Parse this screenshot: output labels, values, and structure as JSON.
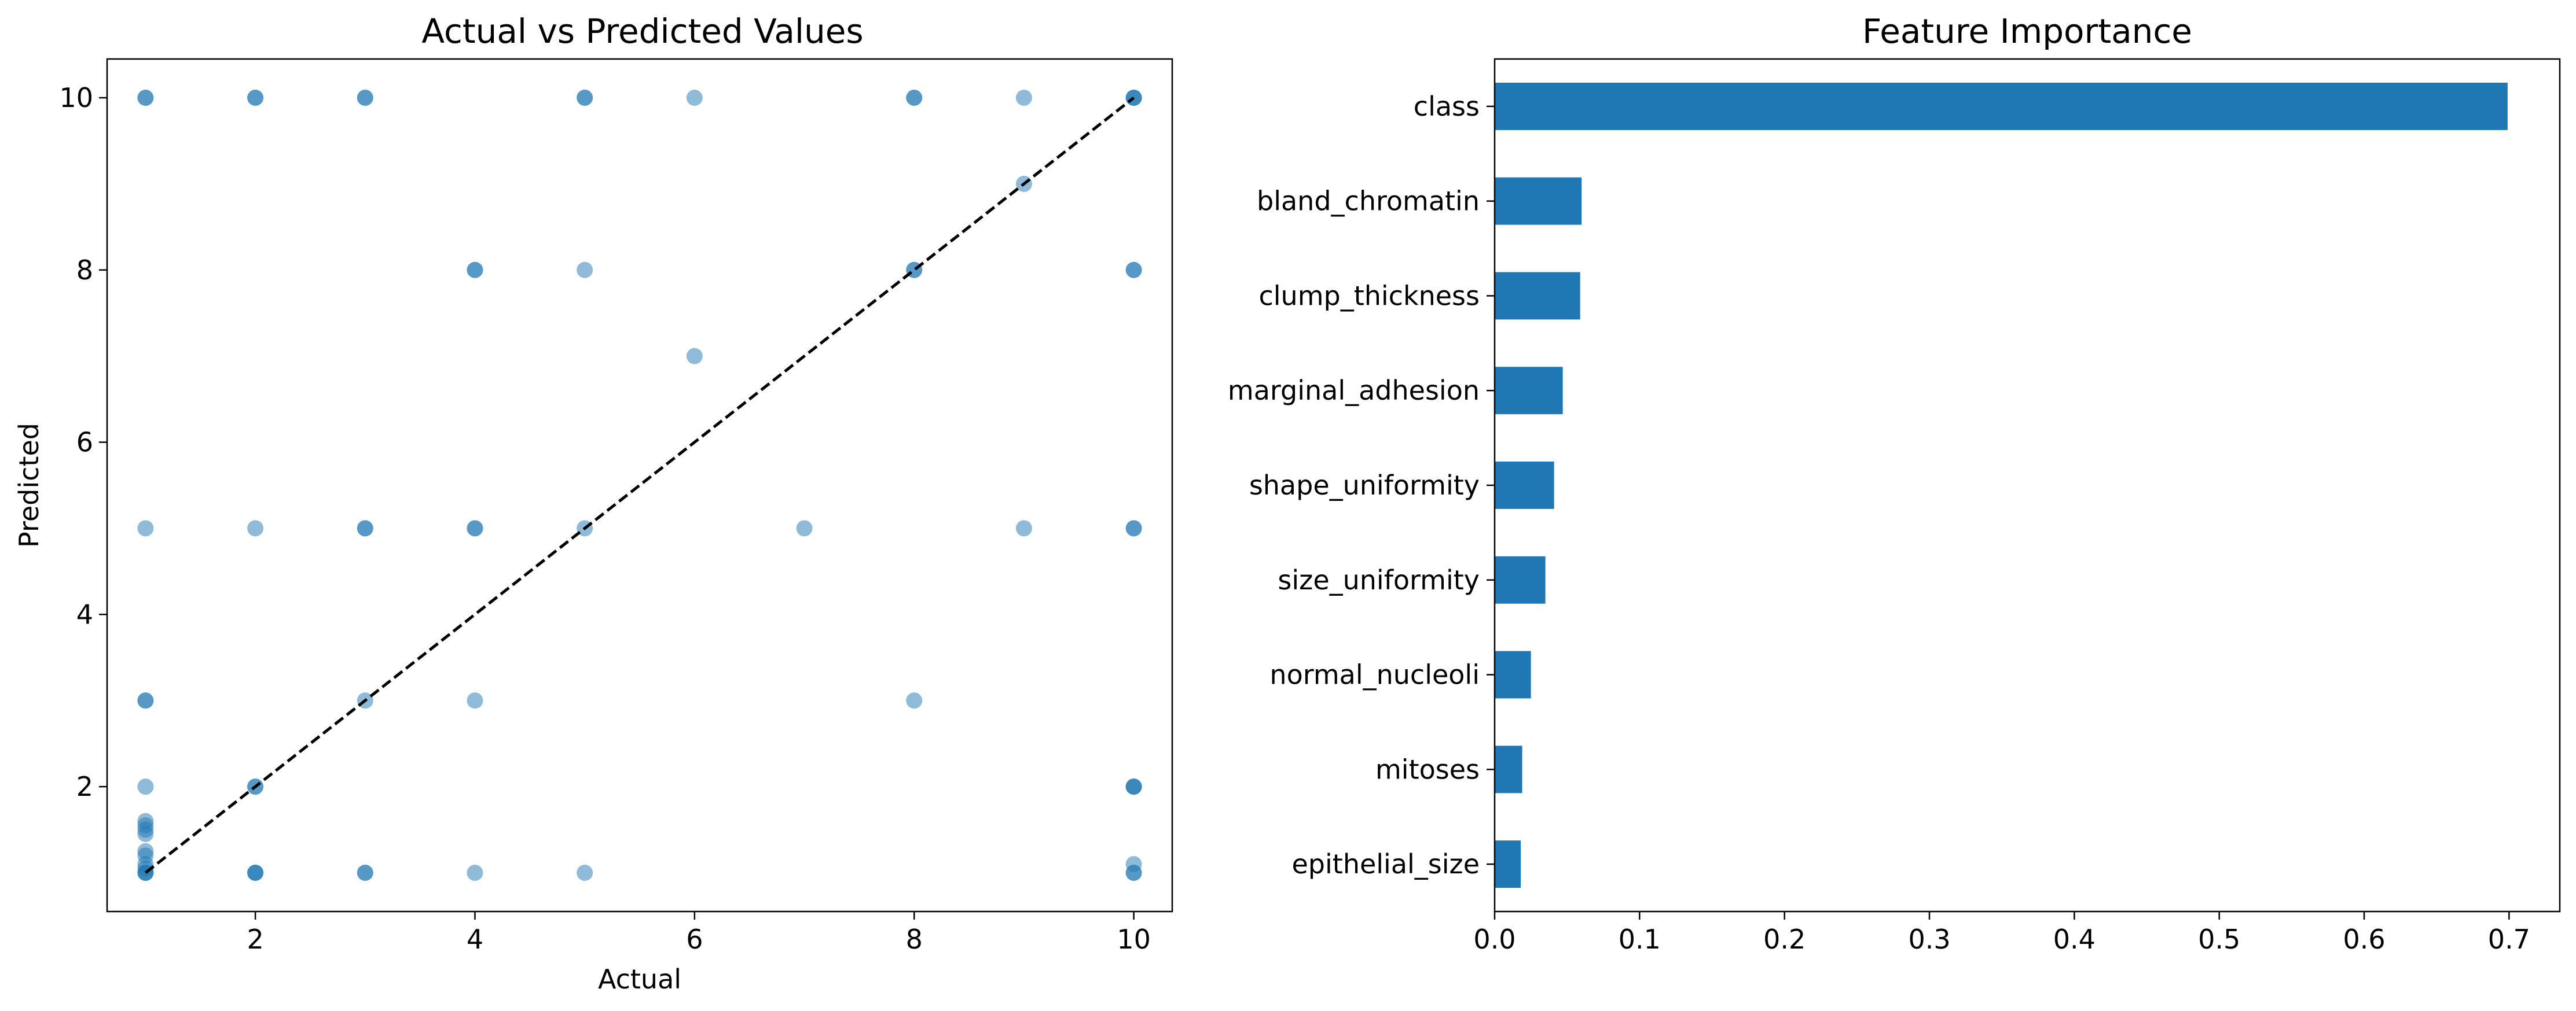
{
  "chart_data": [
    {
      "type": "scatter",
      "title": "Actual vs Predicted Values",
      "xlabel": "Actual",
      "ylabel": "Predicted",
      "xlim": [
        0.65,
        10.35
      ],
      "ylim": [
        0.55,
        10.45
      ],
      "xticks": [
        2,
        4,
        6,
        8,
        10
      ],
      "yticks": [
        2,
        4,
        6,
        8,
        10
      ],
      "point_color": "#1f77b4",
      "point_alpha": 0.5,
      "reference_line": {
        "style": "dashed",
        "color": "#000000",
        "from": [
          1,
          1
        ],
        "to": [
          10,
          10
        ]
      },
      "points": [
        [
          1,
          10
        ],
        [
          1,
          10
        ],
        [
          2,
          10
        ],
        [
          2,
          10
        ],
        [
          3,
          10
        ],
        [
          3,
          10
        ],
        [
          5,
          10
        ],
        [
          5,
          10
        ],
        [
          6,
          10
        ],
        [
          8,
          10
        ],
        [
          8,
          10
        ],
        [
          9,
          10
        ],
        [
          10,
          10
        ],
        [
          10,
          10
        ],
        [
          10,
          10
        ],
        [
          9,
          9
        ],
        [
          4,
          8
        ],
        [
          4,
          8
        ],
        [
          5,
          8
        ],
        [
          8,
          8
        ],
        [
          8,
          8
        ],
        [
          10,
          8
        ],
        [
          10,
          8
        ],
        [
          6,
          7
        ],
        [
          1,
          5
        ],
        [
          2,
          5
        ],
        [
          3,
          5
        ],
        [
          3,
          5
        ],
        [
          4,
          5
        ],
        [
          4,
          5
        ],
        [
          5,
          5
        ],
        [
          7,
          5
        ],
        [
          9,
          5
        ],
        [
          10,
          5
        ],
        [
          10,
          5
        ],
        [
          1,
          3
        ],
        [
          1,
          3
        ],
        [
          3,
          3
        ],
        [
          4,
          3
        ],
        [
          8,
          3
        ],
        [
          1,
          2
        ],
        [
          2,
          2
        ],
        [
          2,
          2
        ],
        [
          10,
          2
        ],
        [
          10,
          2
        ],
        [
          10,
          2
        ],
        [
          1,
          1.6
        ],
        [
          1,
          1.55
        ],
        [
          1,
          1.5
        ],
        [
          1,
          1.45
        ],
        [
          1,
          1.25
        ],
        [
          1,
          1.2
        ],
        [
          1,
          1.1
        ],
        [
          1,
          1.05
        ],
        [
          1,
          1
        ],
        [
          1,
          1
        ],
        [
          1,
          1
        ],
        [
          2,
          1
        ],
        [
          2,
          1
        ],
        [
          2,
          1
        ],
        [
          3,
          1
        ],
        [
          3,
          1
        ],
        [
          4,
          1
        ],
        [
          5,
          1
        ],
        [
          10,
          1.1
        ],
        [
          10,
          1
        ],
        [
          10,
          1
        ]
      ]
    },
    {
      "type": "bar",
      "orientation": "horizontal",
      "title": "Feature Importance",
      "categories": [
        "class",
        "bland_chromatin",
        "clump_thickness",
        "marginal_adhesion",
        "shape_uniformity",
        "size_uniformity",
        "normal_nucleoli",
        "mitoses",
        "epithelial_size"
      ],
      "values": [
        0.699,
        0.06,
        0.059,
        0.047,
        0.041,
        0.035,
        0.025,
        0.019,
        0.018
      ],
      "xlim": [
        0,
        0.735
      ],
      "xticks": [
        "0.0",
        "0.1",
        "0.2",
        "0.3",
        "0.4",
        "0.5",
        "0.6",
        "0.7"
      ],
      "bar_color": "#1f77b4"
    }
  ]
}
